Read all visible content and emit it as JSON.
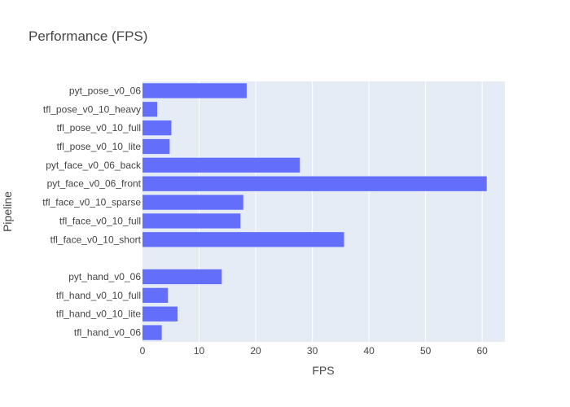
{
  "chart_data": {
    "type": "bar",
    "orientation": "horizontal",
    "title": "Performance (FPS)",
    "xlabel": "FPS",
    "ylabel": "Pipeline",
    "xlim": [
      0,
      64
    ],
    "xticks": [
      0,
      10,
      20,
      30,
      40,
      50,
      60
    ],
    "grid": true,
    "bar_color": "#636efa",
    "plot_bg": "#e5ecf6",
    "categories": [
      "pyt_pose_v0_06",
      "tfl_pose_v0_10_heavy",
      "tfl_pose_v0_10_full",
      "tfl_pose_v0_10_lite",
      "pyt_face_v0_06_back",
      "pyt_face_v0_06_front",
      "tfl_face_v0_10_sparse",
      "tfl_face_v0_10_full",
      "tfl_face_v0_10_short",
      "",
      "pyt_hand_v0_06",
      "tfl_hand_v0_10_full",
      "tfl_hand_v0_10_lite",
      "tfl_hand_v0_06"
    ],
    "values": [
      18.4,
      2.6,
      5.1,
      4.8,
      27.8,
      60.8,
      17.8,
      17.3,
      35.6,
      null,
      14.0,
      4.5,
      6.2,
      3.4
    ]
  }
}
